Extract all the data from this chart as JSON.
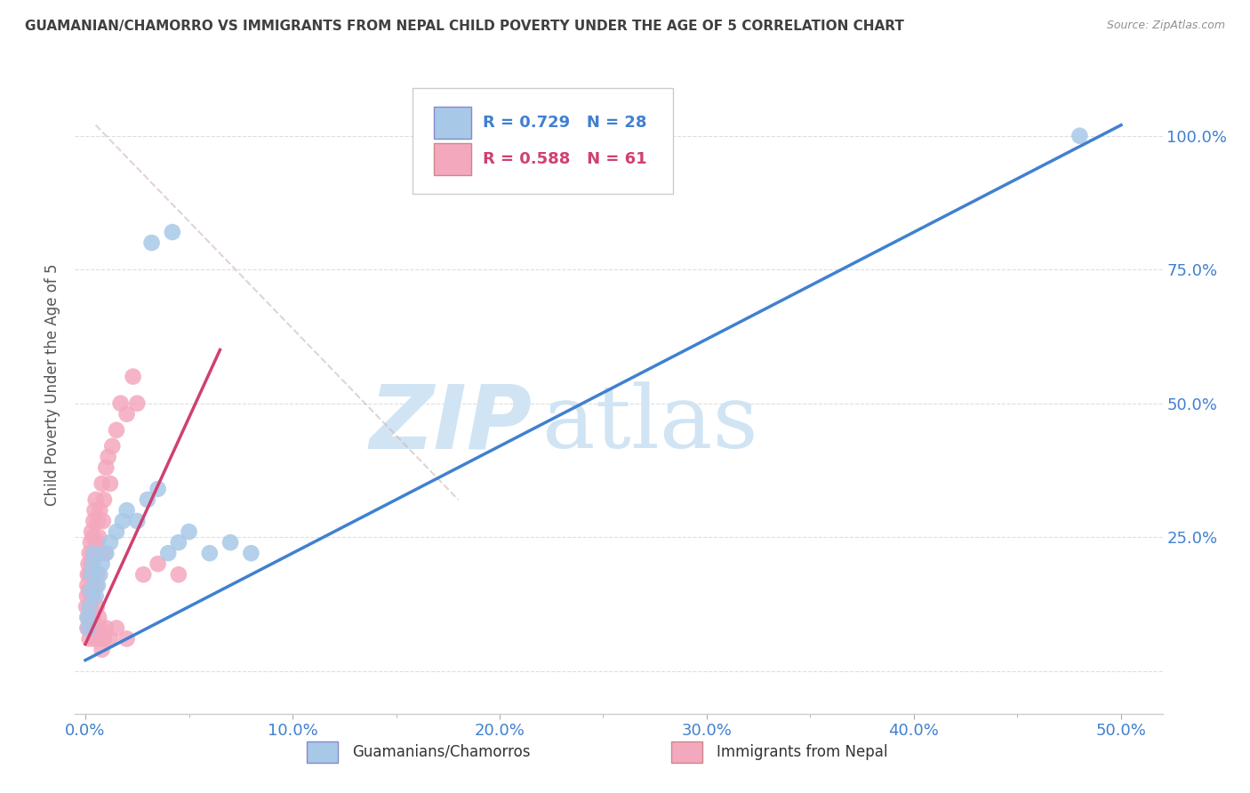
{
  "title": "GUAMANIAN/CHAMORRO VS IMMIGRANTS FROM NEPAL CHILD POVERTY UNDER THE AGE OF 5 CORRELATION CHART",
  "source": "Source: ZipAtlas.com",
  "ylabel": "Child Poverty Under the Age of 5",
  "xlim": [
    0.0,
    50.0
  ],
  "ylim": [
    -5.0,
    110.0
  ],
  "legend_label1": "Guamanians/Chamorros",
  "legend_label2": "Immigrants from Nepal",
  "R1": 0.729,
  "N1": 28,
  "R2": 0.588,
  "N2": 61,
  "color1": "#a8c8e8",
  "color2": "#f4a8be",
  "line_color1": "#4080d0",
  "line_color2": "#d04070",
  "watermark_zip": "ZIP",
  "watermark_atlas": "atlas",
  "watermark_color": "#d0e4f4",
  "title_color": "#404040",
  "source_color": "#909090",
  "axis_label_color": "#4080d0",
  "grid_color": "#dddddd",
  "blue_line_x0": 0.0,
  "blue_line_y0": 2.0,
  "blue_line_x1": 50.0,
  "blue_line_y1": 102.0,
  "pink_line_x0": 0.0,
  "pink_line_y0": 5.0,
  "pink_line_x1": 6.5,
  "pink_line_y1": 60.0,
  "diag_x0": 1.5,
  "diag_y0": 75.0,
  "diag_x1": 5.5,
  "diag_y1": 50.0,
  "scatter1_x": [
    0.1,
    0.15,
    0.2,
    0.25,
    0.3,
    0.35,
    0.4,
    0.5,
    0.6,
    0.7,
    0.8,
    1.0,
    1.2,
    1.5,
    1.8,
    2.0,
    2.5,
    3.0,
    3.5,
    4.0,
    4.5,
    5.0,
    3.2,
    4.2,
    6.0,
    7.0,
    8.0,
    48.0
  ],
  "scatter1_y": [
    10.0,
    8.0,
    12.0,
    15.0,
    18.0,
    20.0,
    22.0,
    14.0,
    16.0,
    18.0,
    20.0,
    22.0,
    24.0,
    26.0,
    28.0,
    30.0,
    28.0,
    32.0,
    34.0,
    22.0,
    24.0,
    26.0,
    80.0,
    82.0,
    22.0,
    24.0,
    22.0,
    100.0
  ],
  "scatter2_x": [
    0.05,
    0.08,
    0.1,
    0.12,
    0.15,
    0.18,
    0.2,
    0.22,
    0.25,
    0.28,
    0.3,
    0.32,
    0.35,
    0.38,
    0.4,
    0.42,
    0.45,
    0.48,
    0.5,
    0.52,
    0.55,
    0.58,
    0.6,
    0.65,
    0.7,
    0.75,
    0.8,
    0.85,
    0.9,
    0.95,
    1.0,
    1.1,
    1.2,
    1.3,
    1.5,
    1.7,
    2.0,
    2.3,
    2.5,
    0.1,
    0.15,
    0.2,
    0.25,
    0.3,
    0.35,
    0.4,
    0.45,
    0.5,
    0.55,
    0.6,
    0.65,
    0.7,
    0.8,
    0.9,
    1.0,
    1.2,
    1.5,
    2.0,
    2.8,
    3.5,
    4.5
  ],
  "scatter2_y": [
    12.0,
    14.0,
    16.0,
    18.0,
    20.0,
    15.0,
    22.0,
    18.0,
    24.0,
    20.0,
    26.0,
    14.0,
    22.0,
    25.0,
    28.0,
    18.0,
    30.0,
    22.0,
    32.0,
    16.0,
    24.0,
    18.0,
    28.0,
    25.0,
    30.0,
    22.0,
    35.0,
    28.0,
    32.0,
    22.0,
    38.0,
    40.0,
    35.0,
    42.0,
    45.0,
    50.0,
    48.0,
    55.0,
    50.0,
    8.0,
    10.0,
    6.0,
    12.0,
    8.0,
    14.0,
    10.0,
    6.0,
    8.0,
    12.0,
    6.0,
    10.0,
    8.0,
    4.0,
    6.0,
    8.0,
    6.0,
    8.0,
    6.0,
    18.0,
    20.0,
    18.0
  ]
}
